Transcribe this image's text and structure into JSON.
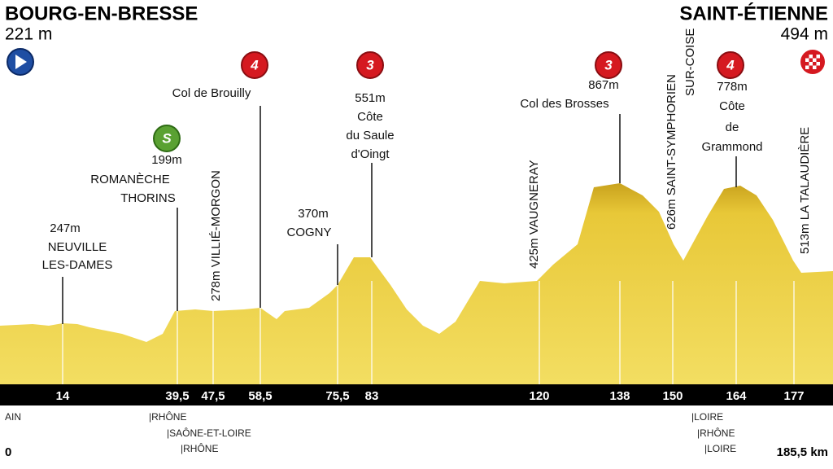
{
  "start": {
    "name": "BOURG-EN-BRESSE",
    "altitude": "221 m"
  },
  "finish": {
    "name": "SAINT-ÉTIENNE",
    "altitude": "494 m"
  },
  "badges": [
    "S",
    "4",
    "3",
    "3",
    "4"
  ],
  "points": [
    {
      "altitude": "247m",
      "name": [
        "NEUVILLE",
        "LES-DAMES"
      ]
    },
    {
      "altitude": "199m",
      "name": [
        "ROMANÈCHE",
        "THORINS"
      ]
    },
    {
      "vertical": "278m VILLIÉ-MORGON"
    },
    {
      "name": [
        "Col de Brouilly"
      ]
    },
    {
      "altitude": "370m",
      "name": [
        "COGNY"
      ]
    },
    {
      "altitude": "551m",
      "name": [
        "Côte",
        "du Saule",
        "d'Oingt"
      ]
    },
    {
      "vertical": "425m VAUGNERAY"
    },
    {
      "altitude": "867m",
      "name": [
        "Col des Brosses"
      ]
    },
    {
      "vertical": "626m SAINT-SYMPHORIEN",
      "vertical2": "SUR-COISE"
    },
    {
      "altitude": "778m",
      "name": [
        "Côte",
        "de",
        "Grammond"
      ]
    },
    {
      "vertical": "513m LA TALAUDIÈRE"
    }
  ],
  "km_markers": [
    "14",
    "39,5",
    "47,5",
    "58,5",
    "75,5",
    "83",
    "120",
    "138",
    "150",
    "164",
    "177"
  ],
  "distance_start": "0",
  "distance_end": "185,5 km",
  "departments": [
    "AIN",
    "|RHÔNE",
    "|SAÔNE-ET-LOIRE",
    "|RHÔNE",
    "|LOIRE",
    "|RHÔNE",
    "|LOIRE"
  ]
}
